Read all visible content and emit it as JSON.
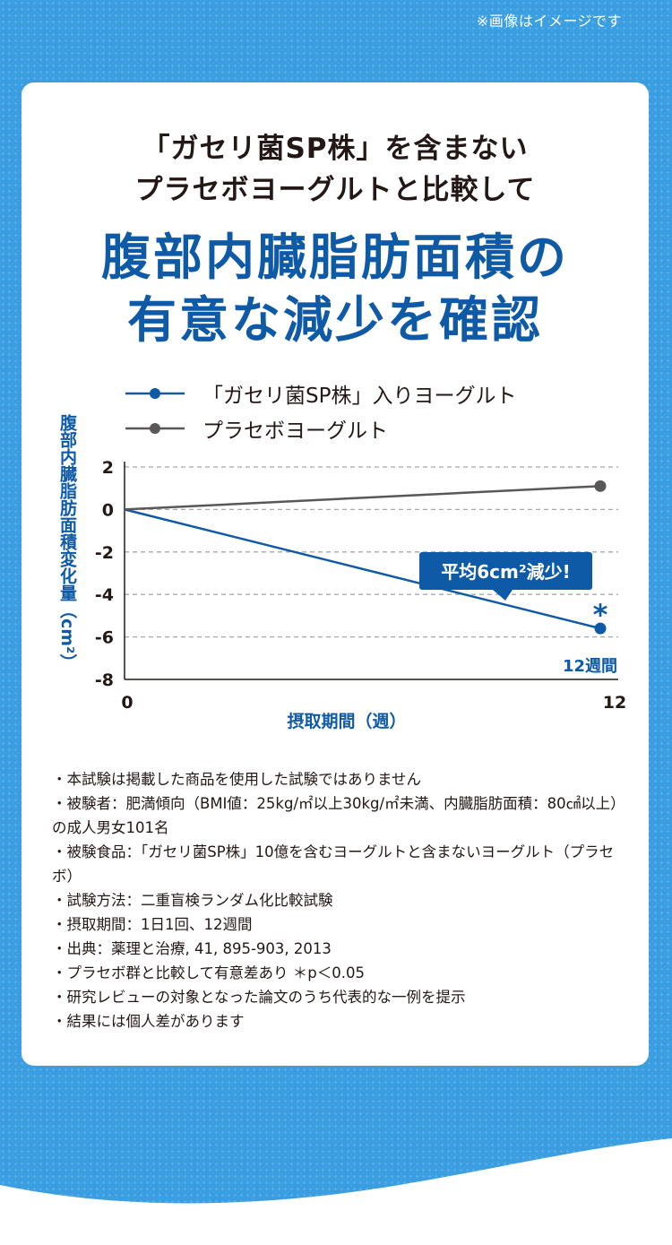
{
  "image_note": "※画像はイメージです",
  "header": {
    "line1": "「ガセリ菌SP株」を含まない",
    "line2": "プラセボヨーグルトと比較して",
    "headline1": "腹部内臓脂肪面積の",
    "headline2": "有意な減少を確認"
  },
  "chart_data": {
    "type": "line",
    "x": [
      0,
      12
    ],
    "series": [
      {
        "name": "「ガセリ菌SP株」入りヨーグルト",
        "values": [
          0,
          -5.6
        ],
        "color": "#0e5aa7"
      },
      {
        "name": "プラセボヨーグルト",
        "values": [
          0,
          1.1
        ],
        "color": "#595757"
      }
    ],
    "ylabel": "腹部内臓脂肪面積変化量（cm²）",
    "xlabel": "摂取期間（週）",
    "ylim": [
      -8,
      2
    ],
    "yticks": [
      "2",
      "0",
      "-2",
      "-4",
      "-6",
      "-8"
    ],
    "xticks": [
      "0",
      "12"
    ],
    "grid": "dashed",
    "legend": "top",
    "annotations": {
      "callout": "平均6cm²減少!",
      "significance": "*",
      "week_label": "12週間"
    }
  },
  "notes": [
    "・本試験は掲載した商品を使用した試験ではありません",
    "・被験者：肥満傾向（BMI値：25kg/㎡以上30kg/㎡未満、内臓脂肪面積：80㎠以上）の成人男女101名",
    "・被験食品：「ガセリ菌SP株」10億を含むヨーグルトと含まないヨーグルト（プラセボ）",
    "・試験方法：二重盲検ランダム化比較試験",
    "・摂取期間：1日1回、12週間",
    "・出典：薬理と治療, 41, 895-903, 2013",
    "・プラセボ群と比較して有意差あり ＊p＜0.05",
    "・研究レビューの対象となった論文のうち代表的な一例を提示",
    "・結果には個人差があります"
  ],
  "colors": {
    "background": "#3a9ee0",
    "accent": "#0e5aa7",
    "placebo": "#595757",
    "grid": "#a8a8a8",
    "text": "#231815"
  }
}
